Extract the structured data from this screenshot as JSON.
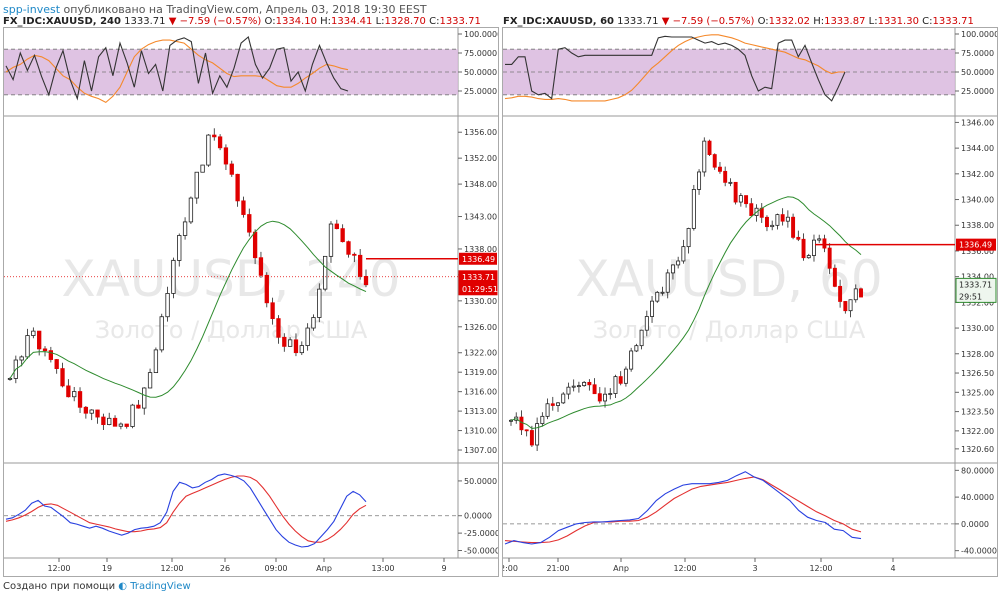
{
  "header": {
    "user": "spp-invest",
    "published": "опубликовано на TradingView.com, Апрель 03, 2018 19:30 EEST"
  },
  "footer": {
    "created_with": "Создано при помощи",
    "brand": "TradingView"
  },
  "colors": {
    "up": "#ffffff",
    "down": "#e00000",
    "candle_border": "#222222",
    "sma": "#2e8b2e",
    "stoch_k": "#333333",
    "stoch_d": "#f5892b",
    "stoch_band": "#d9b8de",
    "macd": "#2840e0",
    "signal": "#e33030",
    "price_marker": "#e00000"
  },
  "chart_data": [
    {
      "type": "candlestick",
      "symbol": "FX_IDC:XAUUSD",
      "interval": "240",
      "title_symbol": "FX_IDC:XAUUSD, 240",
      "last": "1333.71",
      "change": "−7.59 (−0.57%)",
      "ohlc": {
        "O": "1334.10",
        "H": "1334.41",
        "L": "1328.70",
        "C": "1333.71"
      },
      "watermark": "XAUUSD, 240",
      "watermark_sub": "Золото / Доллар США",
      "price_ticks": [
        "1356.00",
        "1352.00",
        "1348.00",
        "1343.00",
        "1338.00",
        "1334.00",
        "1330.00",
        "1326.00",
        "1322.00",
        "1319.00",
        "1316.00",
        "1313.00",
        "1310.00",
        "1307.00"
      ],
      "price_ylim": [
        1305,
        1358.5
      ],
      "time_ticks": [
        "12:00",
        "19",
        "12:00",
        "26",
        "09:00",
        "Апр",
        "13:00",
        "9"
      ],
      "price_labels": {
        "level": "1336.49",
        "last": "1333.71",
        "countdown": "01:29:51"
      },
      "level_price": 1336.49,
      "last_price": 1333.71,
      "stoch_ticks": [
        "100.0000",
        "75.0000",
        "50.0000",
        "25.0000"
      ],
      "stoch_band": [
        20,
        80
      ],
      "stoch_k": [
        58,
        40,
        75,
        52,
        72,
        44,
        20,
        55,
        78,
        40,
        15,
        65,
        25,
        70,
        82,
        45,
        88,
        62,
        30,
        78,
        48,
        60,
        25,
        85,
        92,
        95,
        90,
        35,
        75,
        22,
        45,
        30,
        55,
        88,
        96,
        60,
        42,
        55,
        80,
        82,
        38,
        50,
        25,
        60,
        85,
        62,
        42,
        28,
        25
      ],
      "stoch_d": [
        50,
        56,
        60,
        67,
        72,
        70,
        65,
        55,
        45,
        40,
        30,
        22,
        18,
        15,
        10,
        18,
        30,
        50,
        70,
        80,
        86,
        90,
        92,
        92,
        90,
        88,
        80,
        72,
        66,
        62,
        55,
        48,
        44,
        45,
        45,
        45,
        44,
        38,
        32,
        30,
        30,
        35,
        42,
        48,
        55,
        60,
        58,
        55,
        53
      ],
      "macd_ticks": [
        "50.0000",
        "0.0000",
        "-25.0000",
        "-50.0000"
      ],
      "macd_ylim": [
        -55,
        70
      ],
      "macd": [
        -5,
        -3,
        2,
        8,
        18,
        22,
        14,
        12,
        5,
        -2,
        -10,
        -12,
        -15,
        -18,
        -15,
        -18,
        -22,
        -25,
        -28,
        -25,
        -20,
        -18,
        -17,
        -15,
        -10,
        5,
        35,
        48,
        45,
        40,
        42,
        48,
        52,
        58,
        60,
        58,
        55,
        50,
        40,
        25,
        10,
        -5,
        -20,
        -30,
        -38,
        -42,
        -45,
        -44,
        -40,
        -30,
        -20,
        -8,
        10,
        28,
        35,
        30,
        20
      ],
      "macd_signal": [
        -8,
        -6,
        -3,
        1,
        6,
        12,
        16,
        17,
        15,
        10,
        5,
        0,
        -5,
        -10,
        -12,
        -14,
        -16,
        -19,
        -21,
        -23,
        -23,
        -22,
        -20,
        -19,
        -17,
        -10,
        5,
        18,
        28,
        32,
        36,
        40,
        44,
        48,
        52,
        55,
        57,
        57,
        55,
        50,
        40,
        28,
        14,
        0,
        -12,
        -22,
        -30,
        -36,
        -38,
        -38,
        -34,
        -28,
        -20,
        -10,
        2,
        10,
        15
      ]
    },
    {
      "type": "candlestick",
      "symbol": "FX_IDC:XAUUSD",
      "interval": "60",
      "title_symbol": "FX_IDC:XAUUSD, 60",
      "last": "1333.71",
      "change": "−7.59 (−0.57%)",
      "ohlc": {
        "O": "1332.02",
        "H": "1333.87",
        "L": "1331.30",
        "C": "1333.71"
      },
      "watermark": "XAUUSD, 60",
      "watermark_sub": "Золото / Доллар США",
      "price_ticks": [
        "1346.00",
        "1344.00",
        "1342.00",
        "1340.00",
        "1338.00",
        "1336.00",
        "1334.00",
        "1332.00",
        "1330.00",
        "1328.00",
        "1326.50",
        "1325.00",
        "1323.50",
        "1322.00",
        "1320.60"
      ],
      "price_ylim": [
        1319.5,
        1346.5
      ],
      "time_ticks": [
        "2:00",
        "21:00",
        "Апр",
        "12:00",
        "3",
        "12:00",
        "4"
      ],
      "price_labels": {
        "level": "1336.49",
        "last": "1333.71",
        "countdown": "29:51"
      },
      "level_price": 1336.49,
      "last_price": 1333.71,
      "stoch_ticks": [
        "100.0000",
        "75.0000",
        "50.0000",
        "25.0000"
      ],
      "stoch_band": [
        20,
        80
      ],
      "stoch_k": [
        60,
        60,
        70,
        70,
        25,
        20,
        22,
        15,
        80,
        82,
        75,
        70,
        72,
        72,
        72,
        72,
        72,
        72,
        72,
        72,
        72,
        72,
        72,
        95,
        97,
        96,
        96,
        96,
        96,
        92,
        88,
        90,
        86,
        88,
        85,
        80,
        72,
        45,
        25,
        30,
        28,
        88,
        92,
        92,
        70,
        85,
        62,
        40,
        20,
        12,
        30,
        50
      ],
      "stoch_d": [
        15,
        16,
        18,
        18,
        17,
        15,
        14,
        14,
        15,
        14,
        12,
        12,
        12,
        12,
        12,
        12,
        14,
        16,
        20,
        26,
        35,
        45,
        55,
        62,
        70,
        78,
        85,
        90,
        94,
        96,
        98,
        99,
        99,
        97,
        95,
        92,
        88,
        86,
        84,
        82,
        80,
        78,
        76,
        72,
        68,
        66,
        62,
        58,
        52,
        48,
        50,
        50
      ],
      "macd_ticks": [
        "80.0000",
        "40.0000",
        "0.0000",
        "-40.0000"
      ],
      "macd_ylim": [
        -45,
        85
      ],
      "macd": [
        -30,
        -25,
        -28,
        -30,
        -28,
        -20,
        -10,
        -5,
        0,
        2,
        3,
        3,
        4,
        5,
        6,
        8,
        20,
        35,
        45,
        52,
        58,
        60,
        60,
        60,
        62,
        65,
        72,
        78,
        70,
        65,
        55,
        45,
        35,
        20,
        10,
        5,
        2,
        -8,
        -10,
        -20,
        -22
      ],
      "macd_signal": [
        -25,
        -26,
        -27,
        -28,
        -28,
        -27,
        -24,
        -18,
        -10,
        -3,
        2,
        3,
        3,
        4,
        4,
        5,
        10,
        18,
        28,
        38,
        45,
        52,
        56,
        58,
        60,
        62,
        65,
        68,
        70,
        66,
        58,
        50,
        42,
        34,
        26,
        18,
        12,
        5,
        0,
        -8,
        -12
      ]
    }
  ]
}
